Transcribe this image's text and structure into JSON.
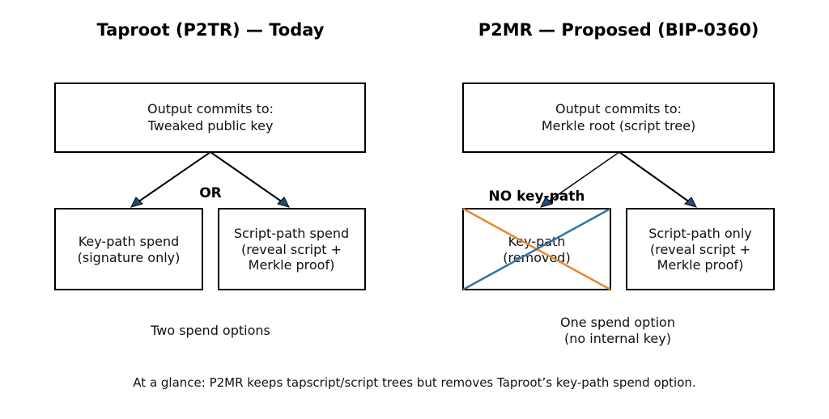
{
  "left": {
    "title": "Taproot (P2TR) — Today",
    "top_box": [
      "Output commits to:",
      "Tweaked public key"
    ],
    "connector_label": "OR",
    "box_a": [
      "Key-path spend",
      "(signature only)"
    ],
    "box_b": [
      "Script-path spend",
      "(reveal script +",
      "Merkle proof)"
    ],
    "caption": "Two spend options"
  },
  "right": {
    "title": "P2MR — Proposed (BIP-0360)",
    "top_box": [
      "Output commits to:",
      "Merkle root (script tree)"
    ],
    "connector_label": "NO key-path",
    "box_a": [
      "Key-path",
      "(removed)"
    ],
    "box_b": [
      "Script-path only",
      "(reveal script +",
      "Merkle proof)"
    ],
    "caption": [
      "One spend option",
      "(no internal key)"
    ],
    "cross_colors": [
      "#e8892a",
      "#2e75a8"
    ]
  },
  "footer": "At a glance: P2MR keeps tapscript/script trees but removes Taproot’s key-path spend option."
}
